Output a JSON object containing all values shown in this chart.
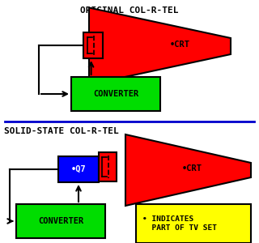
{
  "bg_color": "#ffffff",
  "blue_line_color": "#0000cc",
  "title1": "ORIGINAL COL-R-TEL",
  "title2": "SOLID-STATE COL-R-TEL",
  "title_fontsize": 8.0,
  "title_fontweight": "bold",
  "converter_color": "#00dd00",
  "converter_text": "CONVERTER",
  "converter_text_color": "#000000",
  "crt_color": "#ff0000",
  "red_box_color": "#ff0000",
  "blue_box_color": "#0000ff",
  "q7_text": "•Q7",
  "crt_label": "•CRT",
  "dot_color": "#000000",
  "yellow_box_color": "#ffff00",
  "yellow_box_text": "• INDICATES\n  PART OF TV SET",
  "yellow_box_text_color": "#000000"
}
